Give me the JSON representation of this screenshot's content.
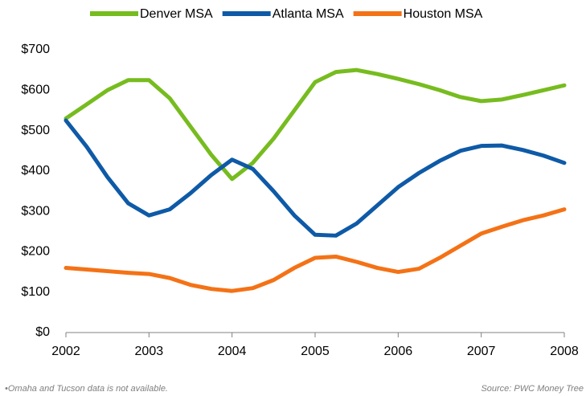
{
  "chart_data": {
    "type": "line",
    "x": [
      2002,
      2002.25,
      2002.5,
      2002.75,
      2003,
      2003.25,
      2003.5,
      2003.75,
      2004,
      2004.25,
      2004.5,
      2004.75,
      2005,
      2005.25,
      2005.5,
      2005.75,
      2006,
      2006.25,
      2006.5,
      2006.75,
      2007,
      2007.25,
      2007.5,
      2007.75,
      2008
    ],
    "series": [
      {
        "name": "Denver MSA",
        "color": "#77bc1f",
        "values": [
          530,
          565,
          600,
          625,
          625,
          580,
          510,
          440,
          380,
          420,
          480,
          550,
          620,
          645,
          650,
          640,
          628,
          615,
          600,
          583,
          573,
          577,
          588,
          600,
          612
        ]
      },
      {
        "name": "Atlanta MSA",
        "color": "#0e5aa7",
        "values": [
          525,
          460,
          385,
          320,
          290,
          305,
          345,
          390,
          428,
          405,
          350,
          290,
          242,
          240,
          270,
          315,
          360,
          395,
          425,
          450,
          462,
          463,
          452,
          438,
          420
        ]
      },
      {
        "name": "Houston MSA",
        "color": "#f47216",
        "values": [
          160,
          156,
          152,
          148,
          145,
          135,
          118,
          108,
          103,
          110,
          130,
          160,
          185,
          188,
          175,
          160,
          150,
          158,
          185,
          215,
          245,
          262,
          278,
          290,
          305
        ]
      }
    ],
    "xlim": [
      2002,
      2008
    ],
    "xticks": [
      2002,
      2003,
      2004,
      2005,
      2006,
      2007,
      2008
    ],
    "ylim": [
      0,
      700
    ],
    "yticks": [
      {
        "value": 0,
        "label": "$0"
      },
      {
        "value": 100,
        "label": "$100"
      },
      {
        "value": 200,
        "label": "$200"
      },
      {
        "value": 300,
        "label": "$300"
      },
      {
        "value": 400,
        "label": "$400"
      },
      {
        "value": 500,
        "label": "$500"
      },
      {
        "value": 600,
        "label": "$600"
      },
      {
        "value": 700,
        "label": "$700"
      }
    ],
    "legend": "top",
    "footnote": "•Omaha and Tucson data is not available.",
    "source": "Source: PWC Money Tree"
  }
}
